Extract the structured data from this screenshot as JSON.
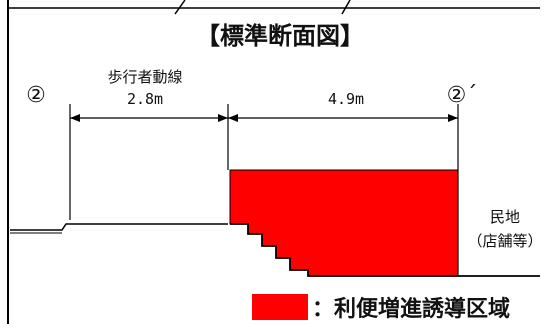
{
  "title": "【標準断面図】",
  "section_markers": {
    "left": "②",
    "right": "②´"
  },
  "walkway": {
    "label": "歩行者動線",
    "width": "2.8m"
  },
  "zone_width": "4.9m",
  "neighbor": {
    "line1": "民地",
    "line2": "（店舗等）"
  },
  "legend": {
    "label": "：利便増進誘導区域",
    "color": "#ff0000"
  }
}
